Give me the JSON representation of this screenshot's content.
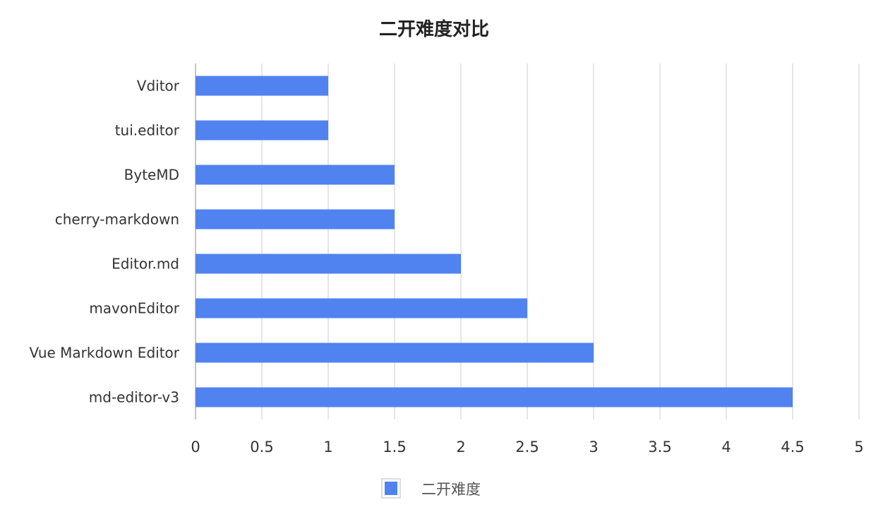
{
  "chart_data": {
    "type": "bar",
    "orientation": "horizontal",
    "title": "二开难度对比",
    "categories": [
      "Vditor",
      "tui.editor",
      "ByteMD",
      "cherry-markdown",
      "Editor.md",
      "mavonEditor",
      "Vue Markdown Editor",
      "md-editor-v3"
    ],
    "series": [
      {
        "name": "二开难度",
        "values": [
          1,
          1,
          1.5,
          1.5,
          2,
          2.5,
          3,
          4.5
        ],
        "color": "#5083F0"
      }
    ],
    "xticks": [
      "0",
      "0.5",
      "1",
      "1.5",
      "2",
      "2.5",
      "3",
      "3.5",
      "4",
      "4.5",
      "5"
    ],
    "xlim": [
      0,
      5
    ],
    "grid": true,
    "legend": "bottom-center"
  }
}
